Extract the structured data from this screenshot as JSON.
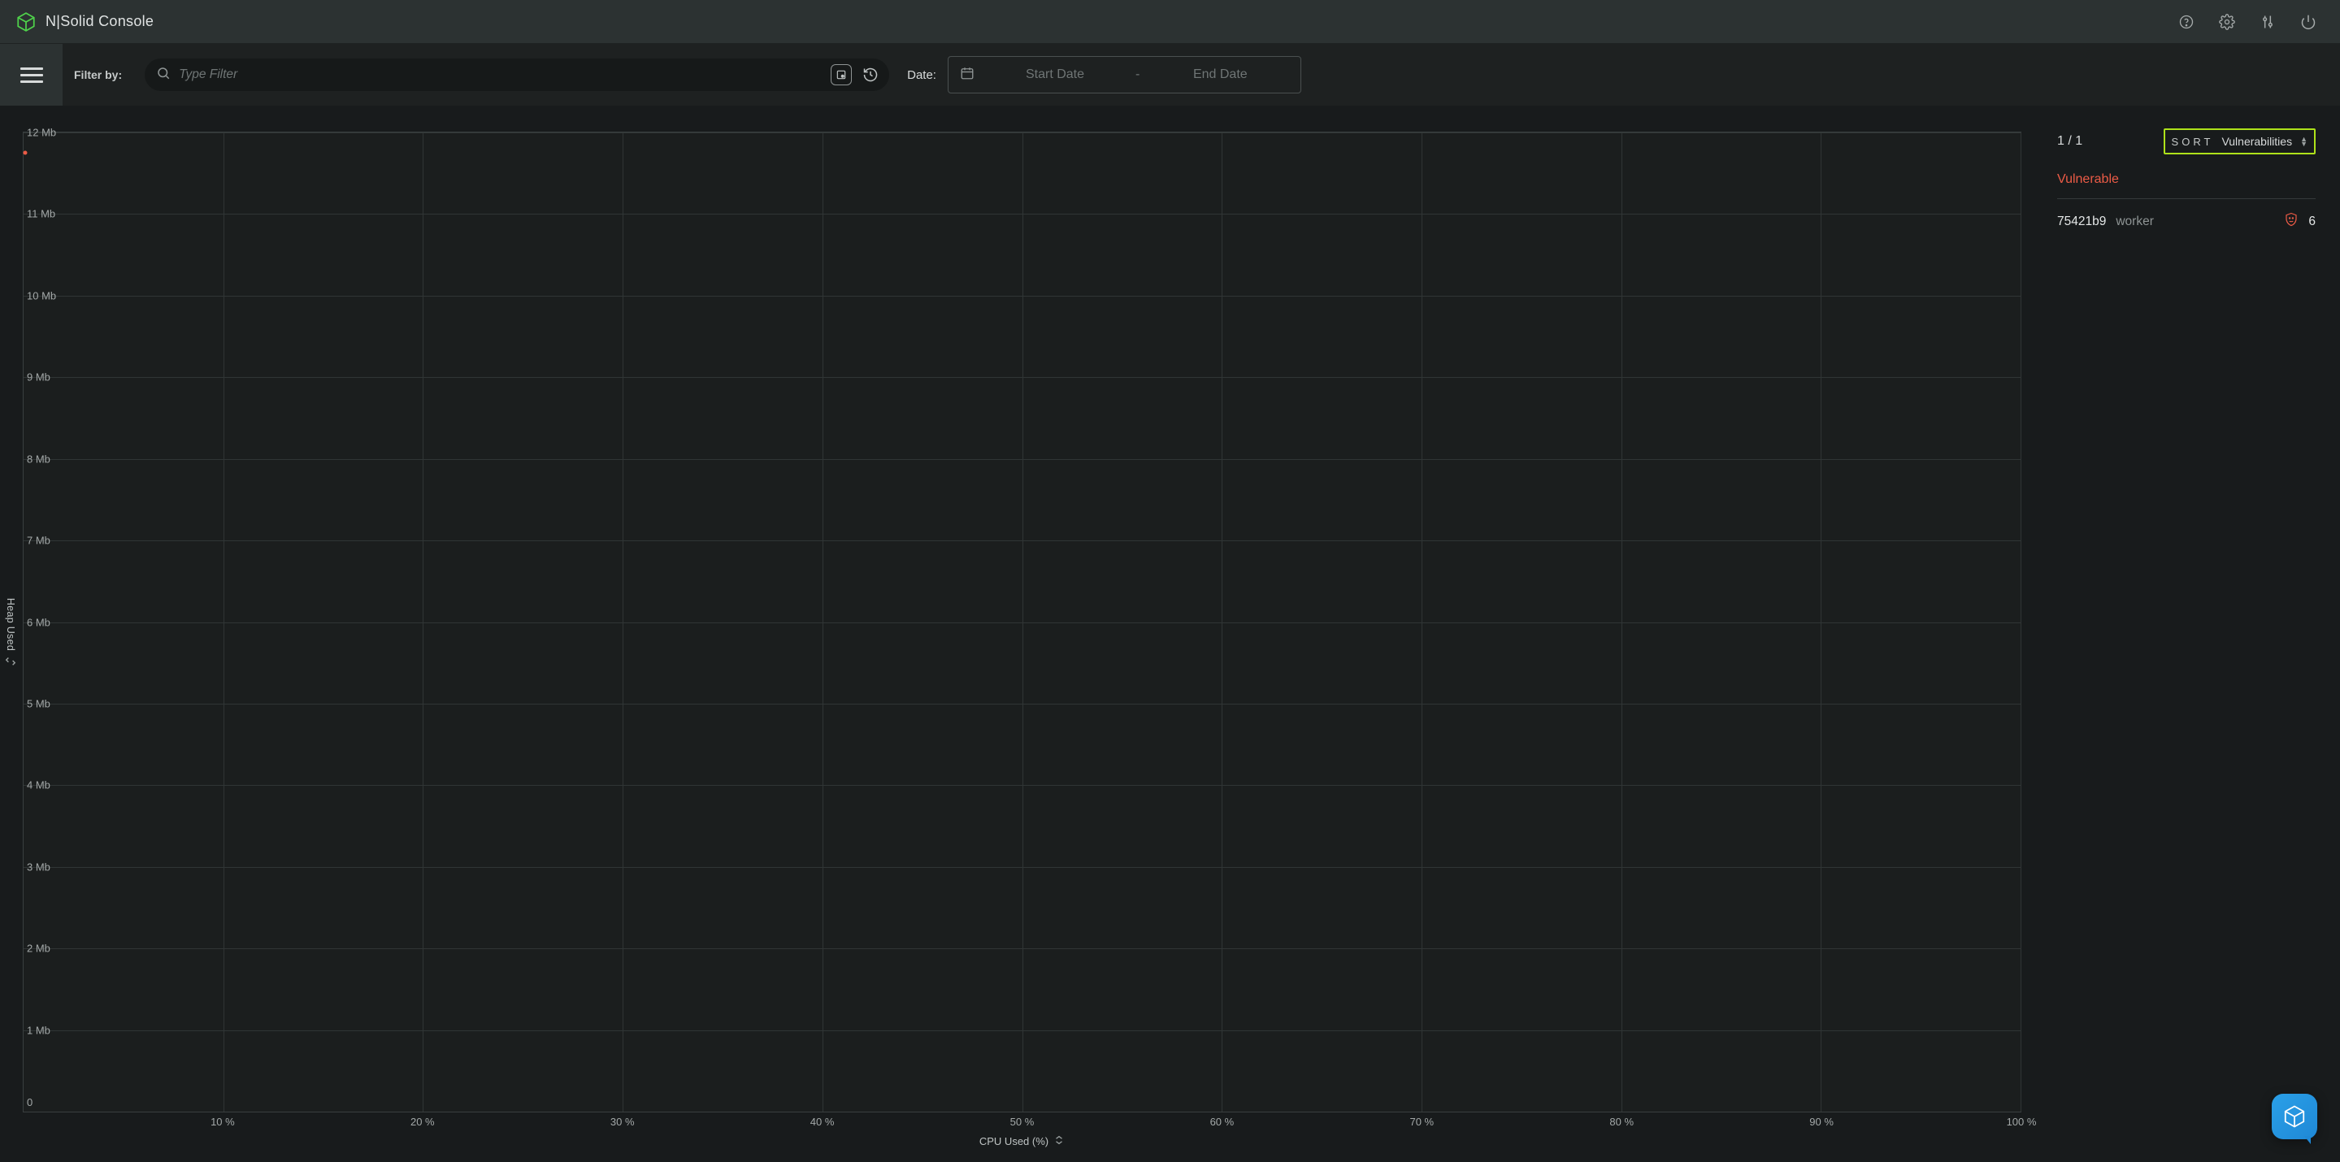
{
  "header": {
    "product_name": "N|Solid Console",
    "logo_color": "#4fd24b"
  },
  "filterbar": {
    "filter_by_label": "Filter by:",
    "search_placeholder": "Type Filter",
    "date_label": "Date:",
    "start_date_placeholder": "Start Date",
    "end_date_placeholder": "End Date",
    "date_separator": "-"
  },
  "chart": {
    "type": "scatter",
    "background_color": "#1b1e1e",
    "grid_color": "#303535",
    "border_color": "#3a3f3f",
    "x_label": "CPU Used (%)",
    "y_label": "Heap Used",
    "xlim": [
      0,
      100
    ],
    "x_ticks": [
      10,
      20,
      30,
      40,
      50,
      60,
      70,
      80,
      90,
      100
    ],
    "x_tick_suffix": " %",
    "ylim": [
      0,
      12
    ],
    "y_ticks": [
      1,
      2,
      3,
      4,
      5,
      6,
      7,
      8,
      9,
      10,
      11,
      12
    ],
    "y_tick_suffix": " Mb",
    "y_origin_label": "0",
    "points": [
      {
        "x": 0.1,
        "y": 11.75,
        "color": "#ec5b46"
      }
    ],
    "label_fontsize": 13,
    "tick_fontsize": 13,
    "tick_color": "#a3a8a8"
  },
  "side": {
    "count_text": "1 / 1",
    "sort_label": "SORT",
    "sort_value": "Vulnerabilities",
    "section_title": "Vulnerable",
    "section_title_color": "#ec5b46",
    "highlight_color": "#aee21a",
    "processes": [
      {
        "id": "75421b9",
        "name": "worker",
        "vuln_count": 6,
        "vuln_color": "#ec5b46"
      }
    ]
  },
  "chat_fab": {
    "bg_start": "#2aa0e8",
    "bg_end": "#1f88d6"
  }
}
